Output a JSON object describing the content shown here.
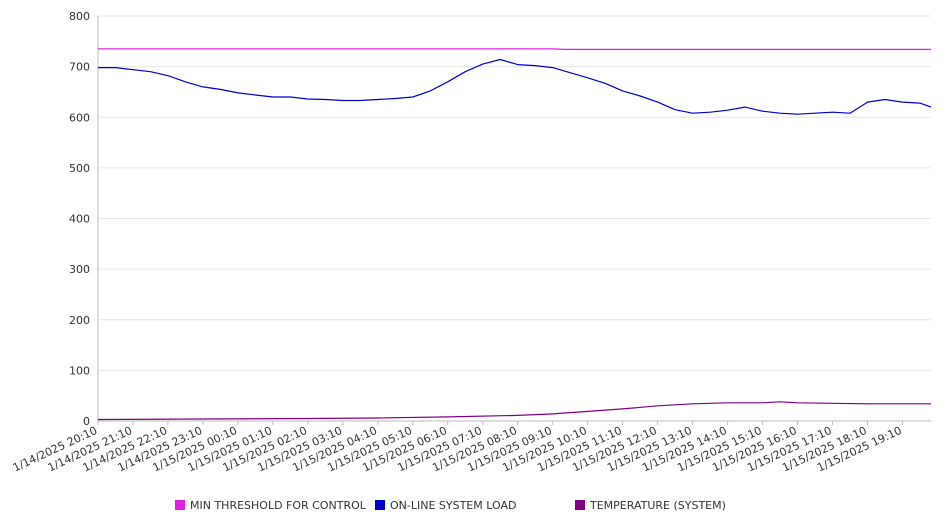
{
  "chart_data": {
    "type": "line",
    "title": "",
    "xlabel": "",
    "ylabel": "",
    "ylim": [
      0,
      800
    ],
    "yticks": [
      0,
      100,
      200,
      300,
      400,
      500,
      600,
      700,
      800
    ],
    "grid": true,
    "legend_position": "bottom",
    "x_tick_labels": [
      "1/14/2025 20:10",
      "1/14/2025 21:10",
      "1/14/2025 22:10",
      "1/14/2025 23:10",
      "1/15/2025 00:10",
      "1/15/2025 01:10",
      "1/15/2025 02:10",
      "1/15/2025 03:10",
      "1/15/2025 04:10",
      "1/15/2025 05:10",
      "1/15/2025 06:10",
      "1/15/2025 07:10",
      "1/15/2025 08:10",
      "1/15/2025 09:10",
      "1/15/2025 10:10",
      "1/15/2025 11:10",
      "1/15/2025 12:10",
      "1/15/2025 13:10",
      "1/15/2025 14:10",
      "1/15/2025 15:10",
      "1/15/2025 16:10",
      "1/15/2025 17:10",
      "1/15/2025 18:10",
      "1/15/2025 19:10"
    ],
    "series": [
      {
        "name": "MIN THRESHOLD FOR CONTROL",
        "color": "#e020e0",
        "x": [
          "1/14/2025 20:10",
          "1/15/2025 09:10",
          "1/15/2025 09:30",
          "1/15/2025 19:59"
        ],
        "values": [
          735,
          735,
          734,
          734
        ]
      },
      {
        "name": "ON-LINE SYSTEM LOAD",
        "color": "#0000cc",
        "x": [
          "1/14/2025 20:10",
          "1/14/2025 20:40",
          "1/14/2025 21:10",
          "1/14/2025 21:40",
          "1/14/2025 22:10",
          "1/14/2025 22:40",
          "1/14/2025 23:10",
          "1/14/2025 23:40",
          "1/15/2025 00:10",
          "1/15/2025 00:40",
          "1/15/2025 01:10",
          "1/15/2025 01:40",
          "1/15/2025 02:10",
          "1/15/2025 02:40",
          "1/15/2025 03:10",
          "1/15/2025 03:40",
          "1/15/2025 04:10",
          "1/15/2025 04:40",
          "1/15/2025 05:10",
          "1/15/2025 05:40",
          "1/15/2025 06:10",
          "1/15/2025 06:40",
          "1/15/2025 07:10",
          "1/15/2025 07:40",
          "1/15/2025 08:10",
          "1/15/2025 08:40",
          "1/15/2025 09:10",
          "1/15/2025 09:40",
          "1/15/2025 10:10",
          "1/15/2025 10:40",
          "1/15/2025 11:10",
          "1/15/2025 11:40",
          "1/15/2025 12:10",
          "1/15/2025 12:40",
          "1/15/2025 13:10",
          "1/15/2025 13:40",
          "1/15/2025 14:10",
          "1/15/2025 14:40",
          "1/15/2025 15:10",
          "1/15/2025 15:40",
          "1/15/2025 16:10",
          "1/15/2025 16:40",
          "1/15/2025 17:10",
          "1/15/2025 17:40",
          "1/15/2025 18:10",
          "1/15/2025 18:40",
          "1/15/2025 19:10",
          "1/15/2025 19:40",
          "1/15/2025 19:59"
        ],
        "values": [
          698,
          698,
          694,
          690,
          682,
          670,
          660,
          655,
          648,
          644,
          640,
          640,
          636,
          635,
          633,
          633,
          635,
          637,
          640,
          652,
          670,
          690,
          705,
          714,
          704,
          702,
          698,
          688,
          678,
          667,
          652,
          642,
          630,
          615,
          608,
          610,
          614,
          620,
          612,
          608,
          606,
          608,
          610,
          608,
          630,
          635,
          630,
          628,
          620
        ]
      },
      {
        "name": "TEMPERATURE (SYSTEM)",
        "color": "#800080",
        "x": [
          "1/14/2025 20:10",
          "1/14/2025 23:10",
          "1/15/2025 02:10",
          "1/15/2025 04:10",
          "1/15/2025 06:10",
          "1/15/2025 08:10",
          "1/15/2025 09:10",
          "1/15/2025 10:10",
          "1/15/2025 11:10",
          "1/15/2025 12:10",
          "1/15/2025 13:10",
          "1/15/2025 14:10",
          "1/15/2025 15:10",
          "1/15/2025 15:40",
          "1/15/2025 16:10",
          "1/15/2025 17:10",
          "1/15/2025 18:10",
          "1/15/2025 19:59"
        ],
        "values": [
          3,
          4,
          5,
          6,
          8,
          11,
          14,
          19,
          24,
          30,
          34,
          36,
          36,
          38,
          36,
          35,
          34,
          34
        ]
      }
    ]
  }
}
